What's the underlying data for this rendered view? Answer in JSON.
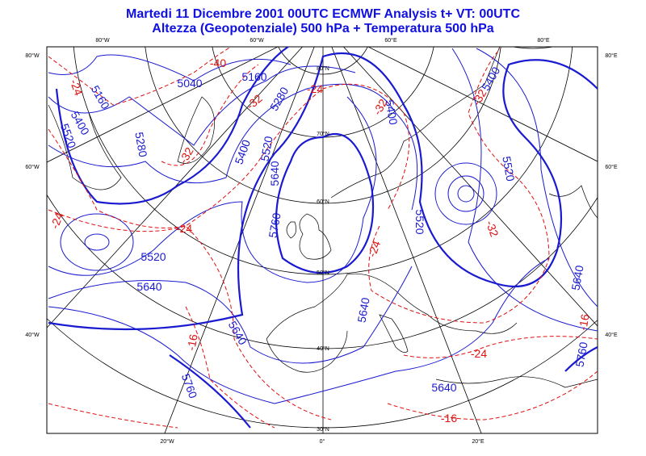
{
  "header": {
    "title": "Martedi 11 Dicembre 2001 00UTC ECMWF  Analysis t+  VT:     00UTC",
    "subtitle": "Altezza (Geopotenziale) 500 hPa + Temperatura 500 hPa"
  },
  "graticule": {
    "top": [
      "80°W",
      "60°W",
      "60°E",
      "80°E"
    ],
    "left": [
      "80°W",
      "60°W",
      "40°W"
    ],
    "right": [
      "80°E",
      "60°E",
      "40°E"
    ],
    "bottom": [
      "20°W",
      "0°",
      "20°E"
    ],
    "inner": [
      "80°N",
      "70°N",
      "60°N",
      "50°N",
      "40°N",
      "30°N"
    ]
  },
  "height_labels": [
    5040,
    5160,
    5280,
    5160,
    5400,
    5520,
    5280,
    5400,
    5520,
    5640,
    5760,
    5520,
    5640,
    5640,
    5760,
    5400,
    5400,
    5520,
    5520,
    5640,
    5640,
    5640,
    5760
  ],
  "temperature_labels": [
    -40,
    -32,
    -24,
    -32,
    -24,
    -24,
    -24,
    -32,
    -32,
    -24,
    -32,
    -16,
    -24,
    -16,
    -16
  ]
}
